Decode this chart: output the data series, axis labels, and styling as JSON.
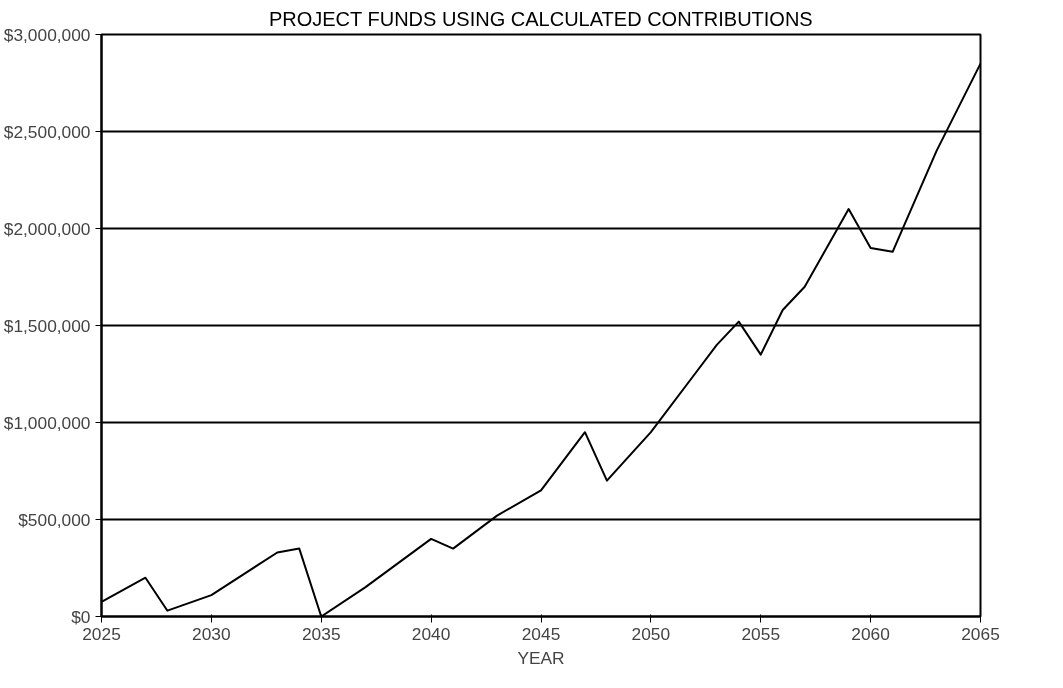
{
  "chart_data": {
    "type": "line",
    "title": "PROJECT FUNDS USING CALCULATED CONTRIBUTIONS",
    "xlabel": "YEAR",
    "x": [
      2025,
      2027,
      2028,
      2030,
      2033,
      2034,
      2035,
      2037,
      2040,
      2041,
      2043,
      2045,
      2047,
      2048,
      2050,
      2052,
      2053,
      2054,
      2055,
      2056,
      2057,
      2059,
      2060,
      2061,
      2063,
      2065
    ],
    "series": [
      {
        "color": "#000000",
        "values": [
          75000,
          200000,
          30000,
          110000,
          330000,
          350000,
          0,
          150000,
          400000,
          350000,
          520000,
          650000,
          950000,
          700000,
          950000,
          1250000,
          1400000,
          1520000,
          1350000,
          1580000,
          1700000,
          2100000,
          1900000,
          1880000,
          2400000,
          2850000
        ]
      }
    ],
    "xlim": [
      2025,
      2065
    ],
    "xticks": [
      2025,
      2030,
      2035,
      2040,
      2045,
      2050,
      2055,
      2060,
      2065
    ],
    "ylim": [
      0,
      3000000
    ],
    "yticks": [
      {
        "value": 0,
        "label": "$0"
      },
      {
        "value": 500000,
        "label": "$500,000"
      },
      {
        "value": 1000000,
        "label": "$1,000,000"
      },
      {
        "value": 1500000,
        "label": "$1,500,000"
      },
      {
        "value": 2000000,
        "label": "$2,000,000"
      },
      {
        "value": 2500000,
        "label": "$2,500,000"
      },
      {
        "value": 3000000,
        "label": "$3,000,000"
      }
    ],
    "grid": "y",
    "marker": "none",
    "line_style": "solid"
  }
}
